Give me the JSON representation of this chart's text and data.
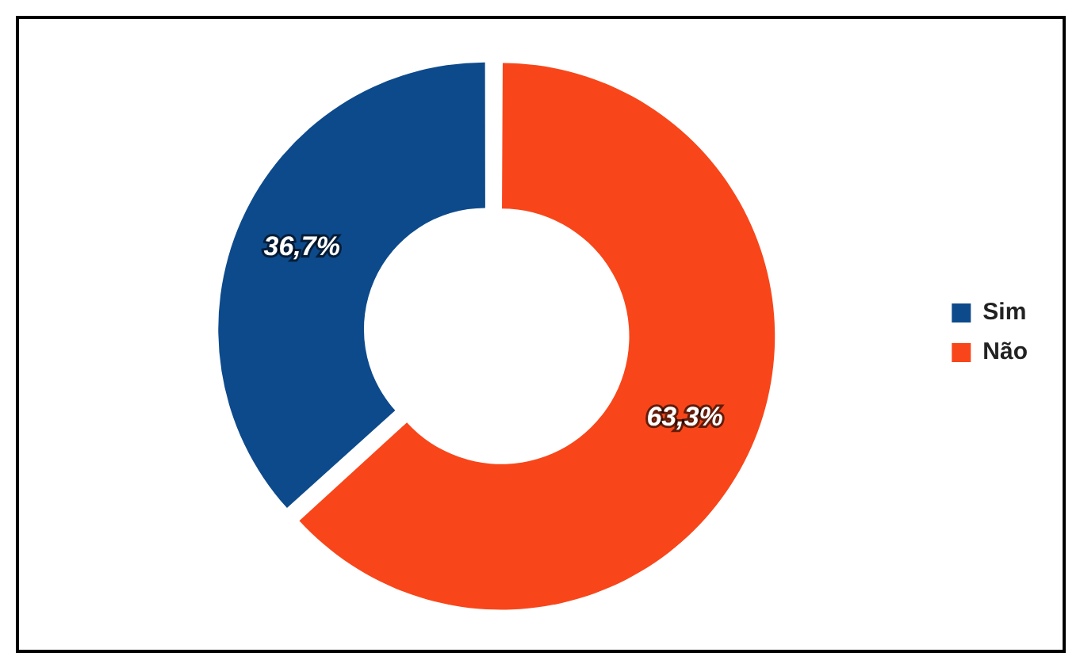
{
  "chart_data": {
    "type": "donut",
    "categories": [
      "Sim",
      "Não"
    ],
    "values": [
      36.7,
      63.3
    ],
    "colors": [
      "#0d4a8c",
      "#f8461a"
    ],
    "value_labels": [
      "36,7%",
      "63,3%"
    ],
    "legend": "right"
  }
}
